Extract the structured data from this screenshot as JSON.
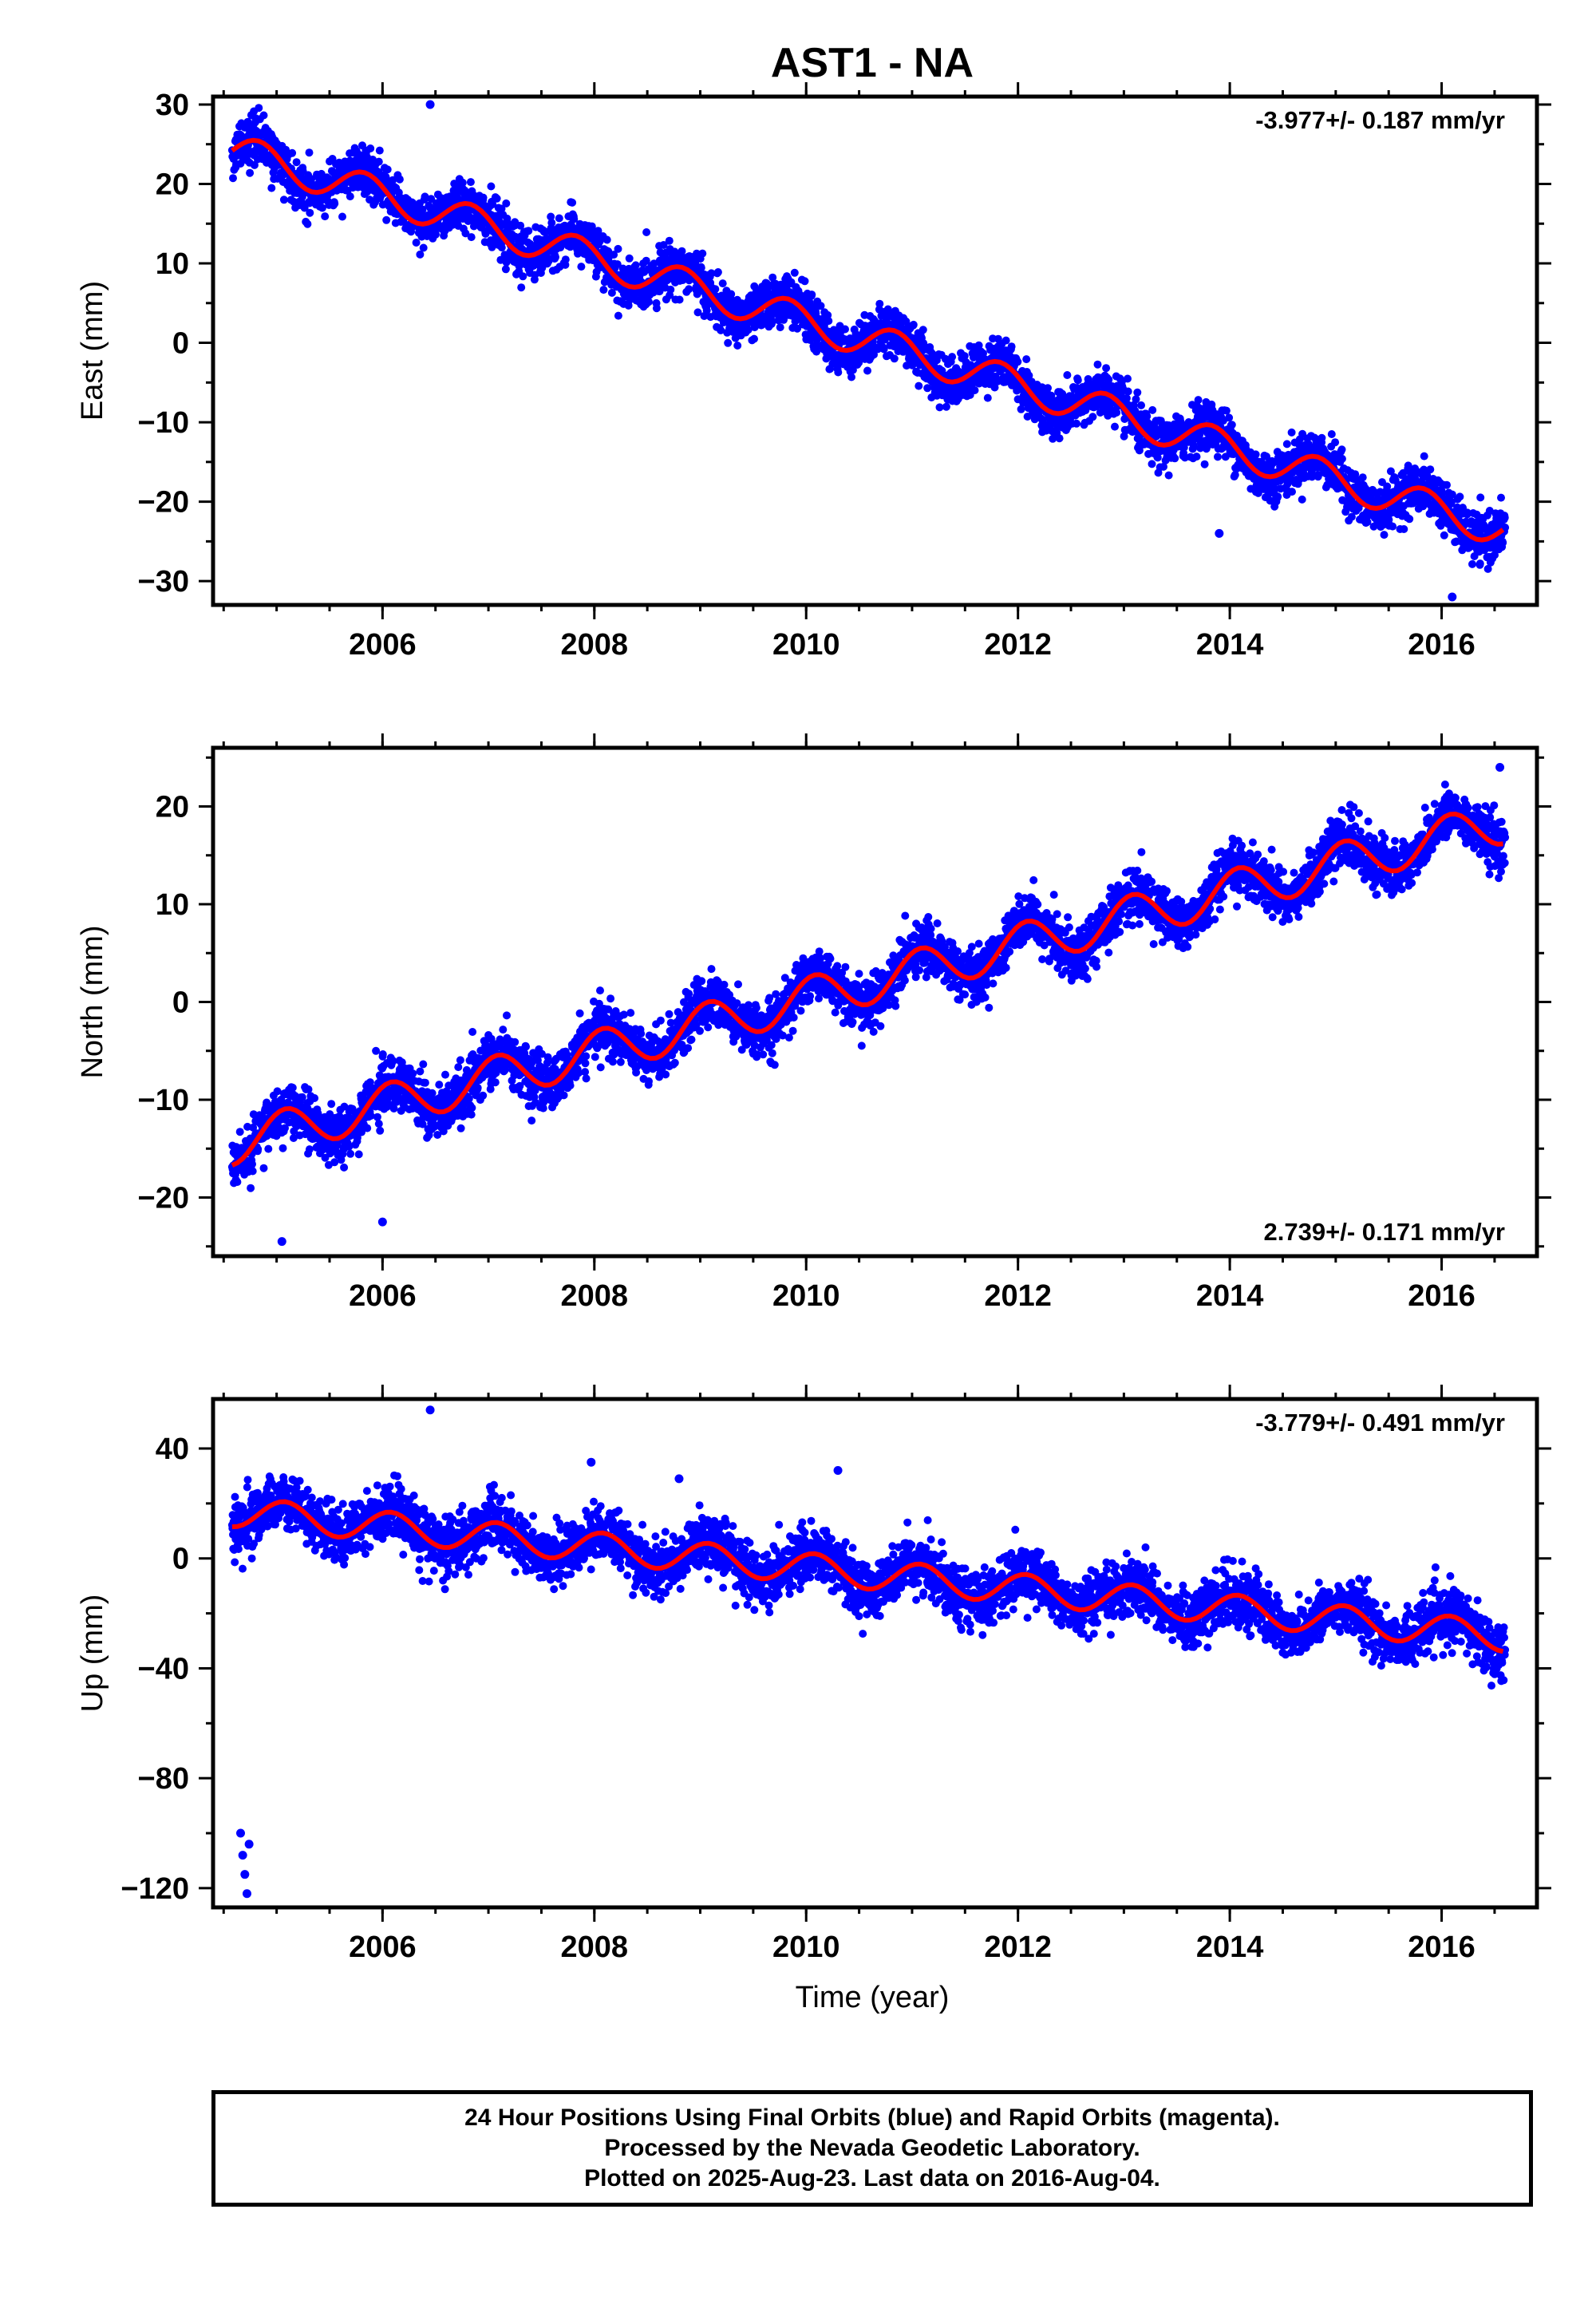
{
  "title": "AST1 - NA",
  "xlabel": "Time (year)",
  "footer": {
    "line1": "24 Hour Positions Using Final Orbits (blue) and Rapid Orbits (magenta).",
    "line2": "Processed by the Nevada Geodetic Laboratory.",
    "line3": "Plotted on 2025-Aug-23. Last data on 2016-Aug-04."
  },
  "colors": {
    "points": "#0000ff",
    "model": "#ff0000",
    "axes": "#000000"
  },
  "chart_data": [
    {
      "type": "scatter",
      "panel": "east",
      "ylabel": "East (mm)",
      "rate_label": "-3.977+/- 0.187 mm/yr",
      "rate_position": "top-right",
      "xlim": [
        2004.4,
        2016.9
      ],
      "ylim": [
        -33,
        31
      ],
      "x_ticks": [
        2006,
        2008,
        2010,
        2012,
        2014,
        2016
      ],
      "y_ticks": [
        -30,
        -20,
        -10,
        0,
        10,
        20,
        30
      ],
      "model": {
        "start": 2004.58,
        "end": 2016.6,
        "y_at_start": 24.2,
        "rate": -3.977,
        "annual_amplitude": 2.2,
        "annual_phase_year": 2004.58,
        "scatter": 1.5,
        "sample_step": 0.05
      },
      "outliers": [
        {
          "x": 2006.45,
          "y": 30
        },
        {
          "x": 2016.1,
          "y": -32
        },
        {
          "x": 2013.9,
          "y": -24
        }
      ]
    },
    {
      "type": "scatter",
      "panel": "north",
      "ylabel": "North (mm)",
      "rate_label": "2.739+/- 0.171 mm/yr",
      "rate_position": "bottom-right",
      "xlim": [
        2004.4,
        2016.9
      ],
      "ylim": [
        -26,
        26
      ],
      "x_ticks": [
        2006,
        2008,
        2010,
        2012,
        2014,
        2016
      ],
      "y_ticks": [
        -20,
        -10,
        0,
        10,
        20
      ],
      "model": {
        "start": 2004.58,
        "end": 2016.6,
        "y_at_start": -14.5,
        "rate": 2.739,
        "annual_amplitude": 2.2,
        "annual_phase_year": 2004.83,
        "scatter": 1.3,
        "sample_step": 0.05
      },
      "outliers": [
        {
          "x": 2005.05,
          "y": -24.5
        },
        {
          "x": 2006.0,
          "y": -22.5
        },
        {
          "x": 2016.55,
          "y": 24
        }
      ]
    },
    {
      "type": "scatter",
      "panel": "up",
      "ylabel": "Up (mm)",
      "rate_label": "-3.779+/- 0.491 mm/yr",
      "rate_position": "top-right",
      "xlim": [
        2004.4,
        2016.9
      ],
      "ylim": [
        -127,
        58
      ],
      "x_ticks": [
        2006,
        2008,
        2010,
        2012,
        2014,
        2016
      ],
      "y_ticks": [
        -120,
        -80,
        -40,
        0,
        40
      ],
      "model": {
        "start": 2004.58,
        "end": 2016.6,
        "y_at_start": 17,
        "rate": -3.779,
        "annual_amplitude": 5.5,
        "annual_phase_year": 2004.83,
        "scatter": 5,
        "sample_step": 0.05
      },
      "outliers": [
        {
          "x": 2006.45,
          "y": 54
        },
        {
          "x": 2010.3,
          "y": 32
        },
        {
          "x": 2008.8,
          "y": 29
        },
        {
          "x": 2007.97,
          "y": 35
        },
        {
          "x": 2004.66,
          "y": -100
        },
        {
          "x": 2004.68,
          "y": -108
        },
        {
          "x": 2004.7,
          "y": -115
        },
        {
          "x": 2004.72,
          "y": -122
        },
        {
          "x": 2004.74,
          "y": -104
        }
      ]
    }
  ]
}
